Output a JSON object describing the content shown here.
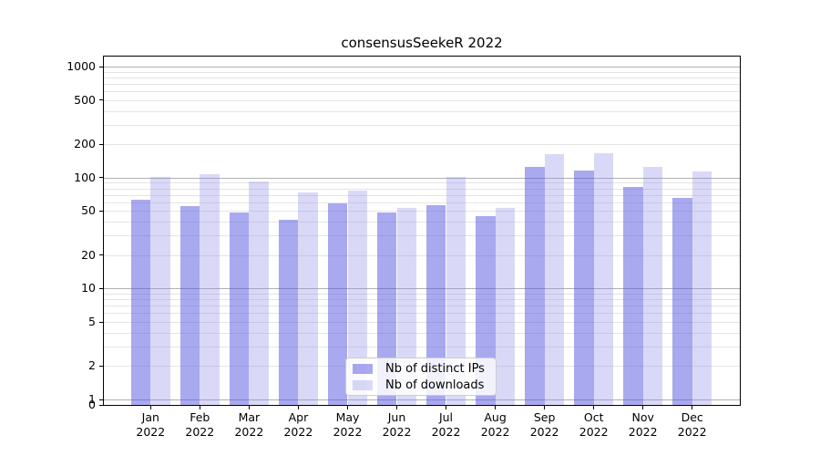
{
  "title": "consensusSeekeR 2022",
  "chart_data": {
    "type": "bar",
    "title": "consensusSeekeR 2022",
    "categories": [
      "Jan",
      "Feb",
      "Mar",
      "Apr",
      "May",
      "Jun",
      "Jul",
      "Aug",
      "Sep",
      "Oct",
      "Nov",
      "Dec"
    ],
    "year": "2022",
    "series": [
      {
        "name": "Nb of distinct IPs",
        "color": "rgba(83,83,223,0.5)",
        "values": [
          63,
          55,
          49,
          42,
          59,
          49,
          56,
          45,
          124,
          115,
          82,
          66
        ]
      },
      {
        "name": "Nb of downloads",
        "color": "rgba(146,146,232,0.35)",
        "values": [
          102,
          107,
          92,
          73,
          76,
          53,
          102,
          53,
          164,
          166,
          126,
          114
        ]
      }
    ],
    "yscale": "log-with-zero",
    "yticks": [
      0,
      1,
      2,
      5,
      10,
      20,
      50,
      100,
      200,
      500,
      1000
    ],
    "ylim": [
      0,
      1250
    ],
    "grid": true,
    "legend_position": "lower center",
    "colors": {
      "major_grid": "#b0b0b0",
      "minor_grid": "#e4e4e4",
      "spine": "#000000",
      "text": "#000000",
      "legend_border": "#cccccc"
    }
  }
}
